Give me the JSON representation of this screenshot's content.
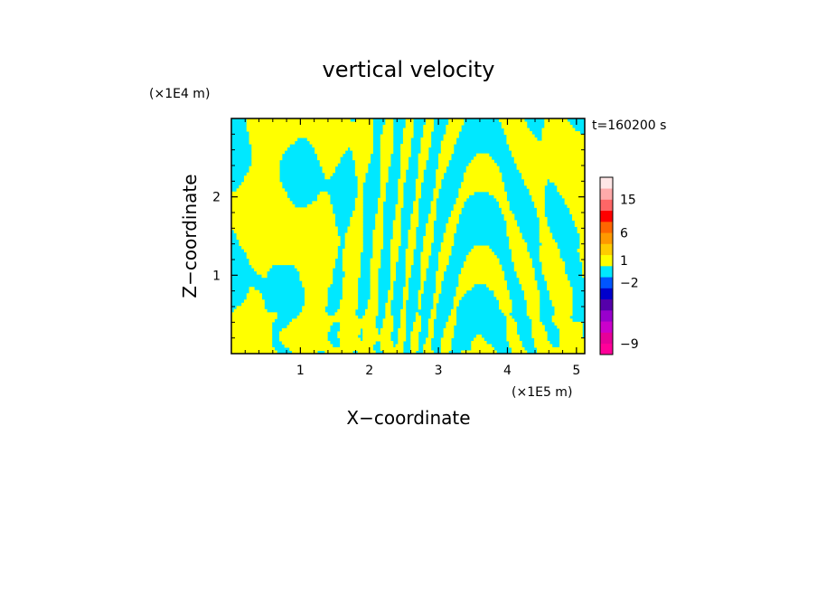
{
  "chart_data": {
    "type": "heatmap",
    "title": "vertical velocity",
    "xlabel": "X−coordinate",
    "ylabel": "Z−coordinate",
    "x_unit": "(×1E5 m)",
    "y_unit": "(×1E4 m)",
    "time_label": "t=160200 s",
    "xlim": [
      0,
      5.12
    ],
    "ylim": [
      0,
      3.0
    ],
    "x_ticks": [
      {
        "v": 1,
        "label": "1"
      },
      {
        "v": 2,
        "label": "2"
      },
      {
        "v": 3,
        "label": "3"
      },
      {
        "v": 4,
        "label": "4"
      },
      {
        "v": 5,
        "label": "5"
      }
    ],
    "y_ticks": [
      {
        "v": 1,
        "label": "1"
      },
      {
        "v": 2,
        "label": "2"
      }
    ],
    "field_colors": {
      "positive": "#ffff00",
      "negative": "#00e8ff"
    },
    "colorbar": {
      "levels": [
        {
          "color": "#ff0099"
        },
        {
          "color": "#e60099"
        },
        {
          "color": "#cc00cc"
        },
        {
          "color": "#9900cc"
        },
        {
          "color": "#5500aa"
        },
        {
          "color": "#0000cc"
        },
        {
          "color": "#0055ff"
        },
        {
          "color": "#00e8ff"
        },
        {
          "color": "#ffff00"
        },
        {
          "color": "#ffcc00"
        },
        {
          "color": "#ff9900"
        },
        {
          "color": "#ff6600"
        },
        {
          "color": "#ff0000"
        },
        {
          "color": "#ff6666"
        },
        {
          "color": "#ffaaaa"
        },
        {
          "color": "#ffe6e6"
        }
      ],
      "labels": [
        {
          "label": "−9",
          "index": 1
        },
        {
          "label": "−2",
          "index": 6.5
        },
        {
          "label": "1",
          "index": 8.5
        },
        {
          "label": "6",
          "index": 11
        },
        {
          "label": "15",
          "index": 14
        }
      ]
    }
  }
}
